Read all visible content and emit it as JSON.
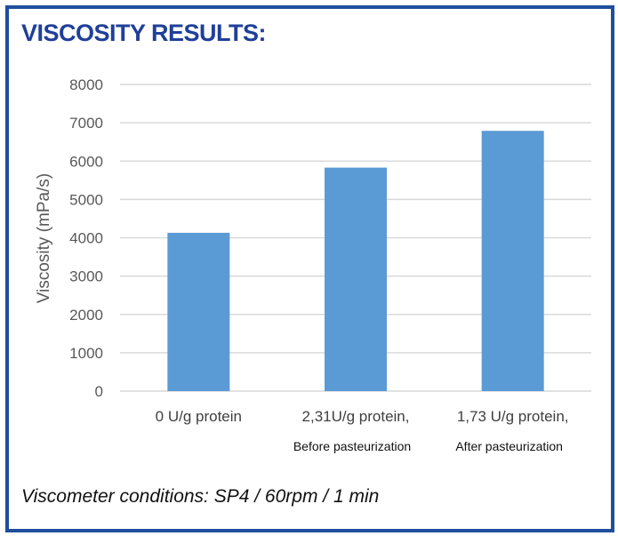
{
  "title": "VISCOSITY RESULTS:",
  "footer": "Viscometer conditions: SP4 / 60rpm / 1 min",
  "chart_data": {
    "type": "bar",
    "categories": [
      "0 U/g protein",
      "2,31U/g protein,",
      "1,73 U/g protein,"
    ],
    "category_sublabels": [
      "",
      "Before pasteurization",
      "After pasteurization"
    ],
    "values": [
      4130,
      5830,
      6790
    ],
    "ylabel": "Viscosity (mPa/s)",
    "xlabel": "",
    "ylim": [
      0,
      8000
    ],
    "yticks": [
      "0",
      "1000",
      "2000",
      "3000",
      "4000",
      "5000",
      "6000",
      "7000",
      "8000"
    ],
    "grid": true,
    "bar_color": "#5b9bd5",
    "grid_color": "#d9d9d9"
  }
}
